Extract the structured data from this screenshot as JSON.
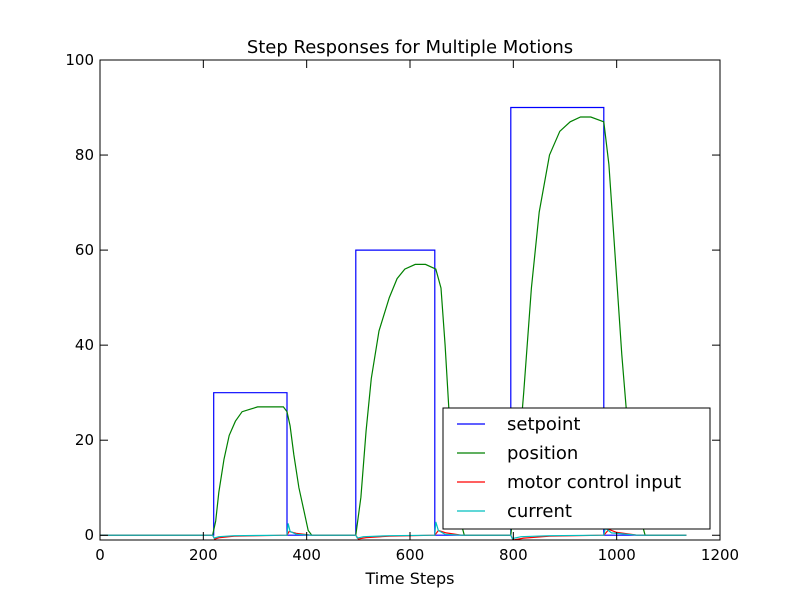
{
  "chart_data": {
    "type": "line",
    "title": "Step Responses for Multiple Motions",
    "xlabel": "Time Steps",
    "ylabel": "",
    "xlim": [
      0,
      1200
    ],
    "ylim": [
      -1,
      100
    ],
    "xticks": [
      0,
      200,
      400,
      600,
      800,
      1000,
      1200
    ],
    "yticks": [
      0,
      20,
      40,
      60,
      80,
      100
    ],
    "legend_position": "bottom-right",
    "grid": false,
    "series": [
      {
        "name": "setpoint",
        "color": "#0000ff",
        "x": [
          0,
          220,
          220,
          362,
          362,
          495,
          495,
          648,
          648,
          795,
          795,
          975,
          975,
          1135
        ],
        "y": [
          0,
          0,
          30,
          30,
          0,
          0,
          60,
          60,
          0,
          0,
          90,
          90,
          0,
          0
        ]
      },
      {
        "name": "position",
        "color": "#008000",
        "x": [
          0,
          218,
          224,
          230,
          240,
          250,
          262,
          275,
          290,
          305,
          318,
          330,
          345,
          355,
          362,
          368,
          375,
          385,
          395,
          403,
          410,
          495,
          505,
          515,
          525,
          540,
          560,
          575,
          590,
          610,
          630,
          650,
          660,
          668,
          676,
          685,
          695,
          705,
          795,
          805,
          820,
          835,
          850,
          870,
          890,
          910,
          930,
          950,
          975,
          985,
          995,
          1010,
          1025,
          1040,
          1055,
          1135
        ],
        "y": [
          0,
          0,
          3,
          9,
          16,
          21,
          24,
          26,
          26.5,
          27,
          27,
          27,
          27,
          27,
          26,
          23,
          17,
          10,
          5,
          1,
          0,
          0,
          8,
          22,
          33,
          43,
          50,
          54,
          56,
          57,
          57,
          56,
          52,
          40,
          25,
          12,
          4,
          0,
          0,
          10,
          30,
          52,
          68,
          80,
          85,
          87,
          88,
          88,
          87,
          78,
          62,
          38,
          18,
          6,
          0,
          0
        ]
      },
      {
        "name": "motor control input",
        "color": "#ff0000",
        "x": [
          0,
          218,
          222,
          232,
          260,
          362,
          366,
          380,
          410,
          495,
          500,
          515,
          560,
          648,
          655,
          670,
          700,
          795,
          800,
          820,
          870,
          975,
          985,
          1000,
          1040,
          1135
        ],
        "y": [
          0,
          0,
          -0.8,
          -0.5,
          -0.2,
          0,
          0.8,
          0.4,
          0,
          0,
          -0.8,
          -0.5,
          -0.2,
          0,
          1,
          0.5,
          0,
          0,
          -1,
          -0.6,
          -0.2,
          0,
          1.2,
          0.6,
          0,
          0
        ]
      },
      {
        "name": "current",
        "color": "#00bfbf",
        "x": [
          0,
          218,
          221,
          230,
          260,
          362,
          364,
          368,
          380,
          410,
          495,
          498,
          510,
          560,
          648,
          650,
          655,
          668,
          700,
          795,
          798,
          815,
          870,
          975,
          978,
          990,
          1040,
          1135
        ],
        "y": [
          0,
          0,
          -0.6,
          -0.3,
          -0.1,
          0,
          2.5,
          0.8,
          0.2,
          0,
          0,
          -0.6,
          -0.3,
          -0.1,
          0,
          2.8,
          1,
          0.2,
          0,
          0,
          -0.7,
          -0.3,
          -0.1,
          0,
          1.5,
          0.5,
          0,
          0
        ]
      }
    ]
  }
}
